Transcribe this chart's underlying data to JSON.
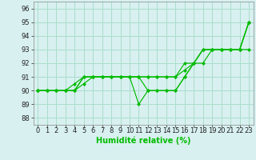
{
  "xlabel": "Humidité relative (%)",
  "background_color": "#d8f0f0",
  "grid_color": "#aaddcc",
  "line_color": "#00bb00",
  "xlim": [
    -0.5,
    23.5
  ],
  "ylim": [
    87.5,
    96.5
  ],
  "yticks": [
    88,
    89,
    90,
    91,
    92,
    93,
    94,
    95,
    96
  ],
  "xticks": [
    0,
    1,
    2,
    3,
    4,
    5,
    6,
    7,
    8,
    9,
    10,
    11,
    12,
    13,
    14,
    15,
    16,
    17,
    18,
    19,
    20,
    21,
    22,
    23
  ],
  "series": [
    [
      90,
      90,
      90,
      90,
      90,
      91,
      91,
      91,
      91,
      91,
      91,
      91,
      90,
      90,
      90,
      90,
      91,
      92,
      93,
      93,
      93,
      93,
      93,
      95
    ],
    [
      90,
      90,
      90,
      90,
      90,
      91,
      91,
      91,
      91,
      91,
      91,
      89,
      90,
      90,
      90,
      90,
      91,
      92,
      92,
      93,
      93,
      93,
      93,
      95
    ],
    [
      90,
      90,
      90,
      90,
      90.5,
      91,
      91,
      91,
      91,
      91,
      91,
      91,
      91,
      91,
      91,
      91,
      92,
      92,
      93,
      93,
      93,
      93,
      93,
      95
    ],
    [
      90,
      90,
      90,
      90,
      90,
      90.5,
      91,
      91,
      91,
      91,
      91,
      91,
      91,
      91,
      91,
      91,
      91.5,
      92,
      93,
      93,
      93,
      93,
      93,
      93
    ]
  ],
  "tick_fontsize": 6,
  "xlabel_fontsize": 7
}
